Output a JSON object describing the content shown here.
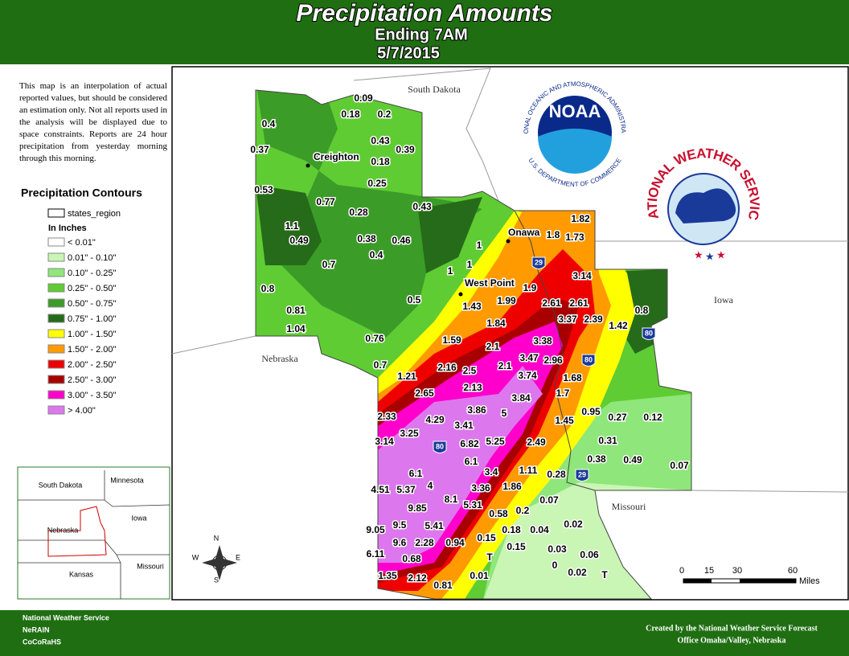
{
  "header": {
    "title": "Precipitation Amounts",
    "subtitle": "Ending 7AM",
    "date": "5/7/2015"
  },
  "note": "This map is an interpolation of actual reported values, but should be considered an estimation only. Not all reports used in the analysis will be displayed due to space constraints. Reports are 24 hour precipitation from yesterday morning through this morning.",
  "legend": {
    "title": "Precipitation Contours",
    "boundary": "states_region",
    "units": "In Inches",
    "items": [
      {
        "label": "< 0.01\"",
        "color": "#ffffff"
      },
      {
        "label": "0.01\" - 0.10\"",
        "color": "#c9f5b5"
      },
      {
        "label": "0.10\" - 0.25\"",
        "color": "#8fe67a"
      },
      {
        "label": "0.25\" - 0.50\"",
        "color": "#5fcc33"
      },
      {
        "label": "0.50\" - 0.75\"",
        "color": "#3c9c28"
      },
      {
        "label": "0.75\" - 1.00\"",
        "color": "#266b1a"
      },
      {
        "label": "1.00\" - 1.50\"",
        "color": "#ffff00"
      },
      {
        "label": "1.50\" - 2.00\"",
        "color": "#ff9a00"
      },
      {
        "label": "2.00\" - 2.50\"",
        "color": "#ee0000"
      },
      {
        "label": "2.50\" - 3.00\"",
        "color": "#a80000"
      },
      {
        "label": "3.00\" - 3.50\"",
        "color": "#ff00cc"
      },
      {
        "label": "> 4.00\"",
        "color": "#dd77ee"
      }
    ]
  },
  "regions": [
    "South Dakota",
    "Iowa",
    "Nebraska",
    "Missouri"
  ],
  "cities": [
    "Creighton",
    "Onawa",
    "West Point"
  ],
  "interstates": [
    "29",
    "80",
    "80",
    "80",
    "29"
  ],
  "stations": [
    "0.09",
    "0.18",
    "0.2",
    "0.4",
    "0.43",
    "0.39",
    "0.37",
    "0.18",
    "0.25",
    "0.53",
    "0.77",
    "0.43",
    "0.28",
    "1.1",
    "1.82",
    "1.8",
    "1.73",
    "0.49",
    "0.38",
    "0.46",
    "1",
    "0.4",
    "0.7",
    "1",
    "1",
    "3.14",
    "1.9",
    "0.8",
    "1.99",
    "2.61",
    "2.61",
    "0.5",
    "1.43",
    "0.8",
    "0.81",
    "3.37",
    "2.39",
    "1.84",
    "1.42",
    "1.04",
    "0.76",
    "1.59",
    "3.38",
    "2.1",
    "3.47",
    "2.96",
    "2.1",
    "0.7",
    "2.16",
    "2.5",
    "3.74",
    "1.68",
    "1.21",
    "2.13",
    "1.7",
    "3.84",
    "2.65",
    "3.86",
    "5",
    "0.95",
    "0.27",
    "0.12",
    "1.45",
    "2.33",
    "4.29",
    "3.41",
    "3.25",
    "3.14",
    "6.82",
    "5.25",
    "2.49",
    "0.31",
    "6.1",
    "0.38",
    "0.49",
    "0.07",
    "6.1",
    "1.11",
    "3.4",
    "0.28",
    "4.51",
    "5.37",
    "4",
    "3.36",
    "1.86",
    "0.07",
    "8.1",
    "5.31",
    "9.85",
    "0.58",
    "0.2",
    "0.02",
    "9.5",
    "5.41",
    "9.05",
    "0.18",
    "0.04",
    "0.15",
    "9.6",
    "2.28",
    "0.94",
    "0.15",
    "0.03",
    "0.06",
    "6.11",
    "T",
    "0.68",
    "0",
    "0.02",
    "T",
    "1.35",
    "2.12",
    "0.01",
    "0.81"
  ],
  "inset": {
    "labels": [
      "South Dakota",
      "Minnesota",
      "Iowa",
      "Nebraska",
      "Missouri",
      "Kansas"
    ]
  },
  "compass": [
    "N",
    "E",
    "S",
    "W"
  ],
  "scale": {
    "ticks": [
      "0",
      "15",
      "30",
      "60"
    ],
    "unit": "Miles"
  },
  "logos": {
    "noaa": "NOAA",
    "noaa_ring_top": "NATIONAL OCEANIC AND ATMOSPHERIC ADMINISTRATION",
    "noaa_ring_bottom": "U.S. DEPARTMENT OF COMMERCE",
    "nws_ring": "NATIONAL WEATHER SERVICE"
  },
  "footer": {
    "left": [
      "National Weather Service",
      "NeRAIN",
      "CoCoRaHS"
    ],
    "right": [
      "Created by the National Weather Service Forecast",
      "Office Omaha/Valley, Nebraska"
    ]
  }
}
